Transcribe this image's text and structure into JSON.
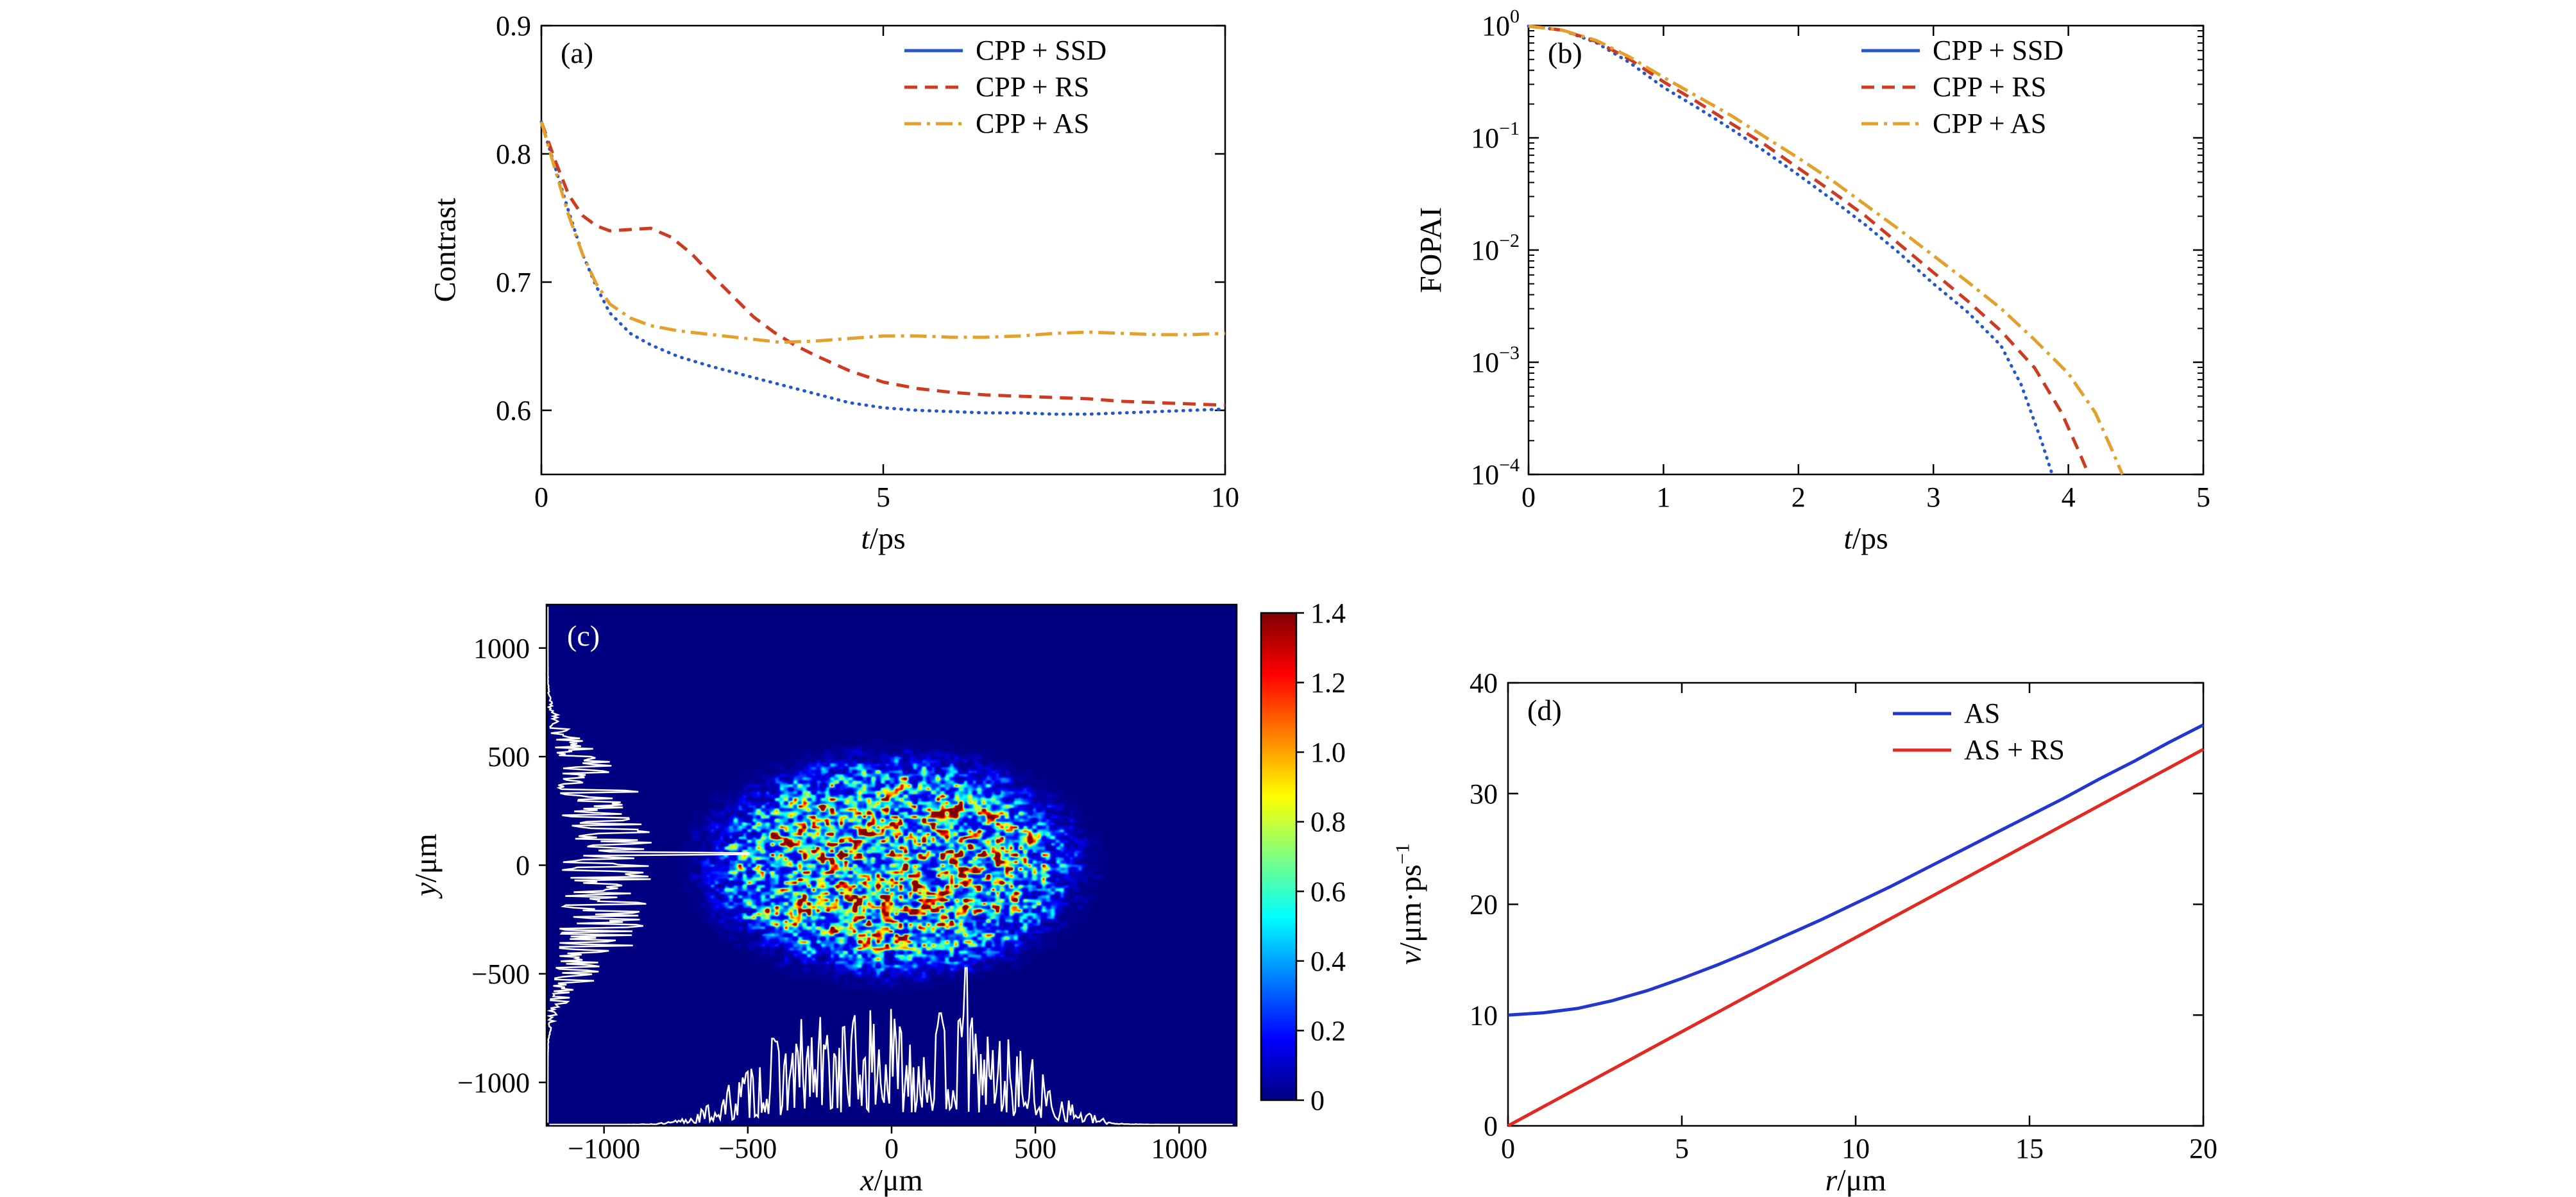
{
  "figure": {
    "background": "#ffffff"
  },
  "chart_data": [
    {
      "id": "a",
      "type": "line",
      "panel_label": "(a)",
      "xlabel": {
        "var": "t",
        "sep": "/",
        "unit": "ps"
      },
      "ylabel": "Contrast",
      "xlim": [
        0,
        10
      ],
      "ylim": [
        0.55,
        0.9
      ],
      "xticks": [
        0,
        5,
        10
      ],
      "xtick_labels": [
        "0",
        "5",
        "10"
      ],
      "yticks": [
        0.6,
        0.7,
        0.8,
        0.9
      ],
      "ytick_labels": [
        "0.6",
        "0.7",
        "0.8",
        "0.9"
      ],
      "grid": false,
      "legend": {
        "position": "upper right"
      },
      "series": [
        {
          "name": "CPP + SSD",
          "color": "#2457c9",
          "plot_dash": "dotted",
          "legend_dash": "solid",
          "x": [
            0,
            0.2,
            0.4,
            0.6,
            0.8,
            1,
            1.3,
            1.6,
            2,
            2.5,
            3,
            3.5,
            4,
            4.5,
            5,
            5.5,
            6,
            6.5,
            7,
            7.5,
            8,
            8.5,
            9,
            9.5,
            10
          ],
          "y": [
            0.825,
            0.79,
            0.755,
            0.722,
            0.697,
            0.676,
            0.66,
            0.651,
            0.642,
            0.634,
            0.627,
            0.62,
            0.613,
            0.606,
            0.602,
            0.6,
            0.599,
            0.598,
            0.598,
            0.597,
            0.597,
            0.598,
            0.599,
            0.6,
            0.601
          ]
        },
        {
          "name": "CPP + RS",
          "color": "#ce3b23",
          "plot_dash": "dashed",
          "legend_dash": "dashed",
          "x": [
            0,
            0.2,
            0.4,
            0.6,
            0.8,
            1,
            1.3,
            1.6,
            1.9,
            2.2,
            2.5,
            2.8,
            3.1,
            3.4,
            3.7,
            4,
            4.5,
            5,
            5.5,
            6,
            6.5,
            7,
            7.5,
            8,
            8.5,
            9,
            9.5,
            10
          ],
          "y": [
            0.825,
            0.795,
            0.768,
            0.752,
            0.744,
            0.74,
            0.741,
            0.742,
            0.735,
            0.722,
            0.705,
            0.689,
            0.673,
            0.661,
            0.651,
            0.643,
            0.631,
            0.622,
            0.617,
            0.614,
            0.612,
            0.611,
            0.61,
            0.609,
            0.607,
            0.606,
            0.605,
            0.604
          ]
        },
        {
          "name": "CPP + AS",
          "color": "#e3a12c",
          "plot_dash": "dashdot",
          "legend_dash": "dashdot",
          "x": [
            0,
            0.2,
            0.4,
            0.6,
            0.8,
            1,
            1.3,
            1.6,
            2,
            2.5,
            3,
            3.5,
            4,
            4.5,
            5,
            5.5,
            6,
            6.5,
            7,
            7.5,
            8,
            8.5,
            9,
            9.5,
            10
          ],
          "y": [
            0.825,
            0.788,
            0.752,
            0.722,
            0.699,
            0.683,
            0.672,
            0.666,
            0.662,
            0.659,
            0.656,
            0.653,
            0.654,
            0.656,
            0.658,
            0.658,
            0.657,
            0.657,
            0.658,
            0.66,
            0.661,
            0.66,
            0.659,
            0.659,
            0.66
          ]
        }
      ]
    },
    {
      "id": "b",
      "type": "line",
      "panel_label": "(b)",
      "xlabel": {
        "var": "t",
        "sep": "/",
        "unit": "ps"
      },
      "ylabel": "FOPAI",
      "xlim": [
        0,
        5
      ],
      "yscale": "log",
      "ylim_exp": [
        0,
        -4
      ],
      "xticks": [
        0,
        1,
        2,
        3,
        4,
        5
      ],
      "xtick_labels": [
        "0",
        "1",
        "2",
        "3",
        "4",
        "5"
      ],
      "ytick_exps": [
        0,
        -1,
        -2,
        -3,
        -4
      ],
      "ytick_exponent_labels": [
        "0",
        "−1",
        "−2",
        "−3",
        "−4"
      ],
      "grid": false,
      "legend": {
        "position": "upper right"
      },
      "series": [
        {
          "name": "CPP + SSD",
          "color": "#2457c9",
          "plot_dash": "dotted",
          "legend_dash": "solid",
          "x": [
            0,
            0.25,
            0.5,
            0.75,
            1,
            1.25,
            1.5,
            1.75,
            2,
            2.25,
            2.5,
            2.75,
            3,
            3.25,
            3.5,
            3.65,
            3.8,
            3.88
          ],
          "y_log10": [
            -0.005,
            -0.04,
            -0.15,
            -0.33,
            -0.55,
            -0.73,
            -0.92,
            -1.12,
            -1.33,
            -1.55,
            -1.78,
            -2.03,
            -2.3,
            -2.55,
            -2.85,
            -3.2,
            -3.7,
            -4
          ]
        },
        {
          "name": "CPP + RS",
          "color": "#ce3b23",
          "plot_dash": "dashed",
          "legend_dash": "dashed",
          "x": [
            0,
            0.25,
            0.5,
            0.75,
            1,
            1.25,
            1.5,
            1.75,
            2,
            2.25,
            2.5,
            2.75,
            3,
            3.25,
            3.5,
            3.75,
            3.95,
            4.08,
            4.15
          ],
          "y_log10": [
            -0.005,
            -0.04,
            -0.14,
            -0.3,
            -0.5,
            -0.68,
            -0.87,
            -1.06,
            -1.27,
            -1.48,
            -1.7,
            -1.95,
            -2.2,
            -2.45,
            -2.72,
            -3.05,
            -3.45,
            -3.8,
            -4
          ]
        },
        {
          "name": "CPP + AS",
          "color": "#e3a12c",
          "plot_dash": "dashdot",
          "legend_dash": "dashdot",
          "x": [
            0,
            0.25,
            0.5,
            0.75,
            1,
            1.25,
            1.5,
            1.75,
            2,
            2.25,
            2.5,
            2.75,
            3,
            3.25,
            3.5,
            3.75,
            4,
            4.2,
            4.33,
            4.4
          ],
          "y_log10": [
            -0.005,
            -0.04,
            -0.13,
            -0.28,
            -0.46,
            -0.63,
            -0.8,
            -0.99,
            -1.18,
            -1.38,
            -1.6,
            -1.82,
            -2.05,
            -2.28,
            -2.52,
            -2.8,
            -3.1,
            -3.45,
            -3.8,
            -4
          ]
        }
      ]
    },
    {
      "id": "c",
      "type": "heatmap",
      "panel_label": "(c)",
      "xlabel": {
        "var": "x",
        "sep": "/",
        "unit": "μm"
      },
      "ylabel": {
        "var": "y",
        "sep": "/",
        "unit": "μm"
      },
      "xlim": [
        -1200,
        1200
      ],
      "ylim": [
        -1200,
        1200
      ],
      "xticks": [
        -1000,
        -500,
        0,
        500,
        1000
      ],
      "xtick_labels": [
        "−1000",
        "−500",
        "0",
        "500",
        "1000"
      ],
      "yticks": [
        -1000,
        -500,
        0,
        500,
        1000
      ],
      "ytick_labels": [
        "−1000",
        "−500",
        "0",
        "500",
        "1000"
      ],
      "colorbar": {
        "min": 0,
        "max": 1.4,
        "tick_values": [
          0,
          0.2,
          0.4,
          0.6,
          0.8,
          1,
          1.2,
          1.4
        ],
        "tick_labels": [
          "0",
          "0.2",
          "0.4",
          "0.6",
          "0.8",
          "1.0",
          "1.2",
          "1.4"
        ],
        "colormap": "jet"
      },
      "spot": {
        "center_um": [
          0,
          0
        ],
        "semi_axis_x_um": 590,
        "semi_axis_y_um": 460,
        "peak_intensity": 1.4
      },
      "profiles": {
        "color": "#ffffff"
      }
    },
    {
      "id": "d",
      "type": "line",
      "panel_label": "(d)",
      "xlabel": {
        "var": "r",
        "sep": "/",
        "unit": "μm"
      },
      "ylabel": {
        "var": "v",
        "sep": "/",
        "unit": "μm·ps",
        "sup": "−1"
      },
      "xlim": [
        0,
        20
      ],
      "ylim": [
        0,
        40
      ],
      "xticks": [
        0,
        5,
        10,
        15,
        20
      ],
      "xtick_labels": [
        "0",
        "5",
        "10",
        "15",
        "20"
      ],
      "yticks": [
        0,
        10,
        20,
        30,
        40
      ],
      "ytick_labels": [
        "0",
        "10",
        "20",
        "30",
        "40"
      ],
      "grid": false,
      "legend": {
        "position": "upper center-right"
      },
      "series": [
        {
          "name": "AS",
          "color": "#2336d0",
          "plot_dash": "solid",
          "legend_dash": "solid",
          "x": [
            0,
            1,
            2,
            3,
            4,
            5,
            6,
            7,
            8,
            9,
            10,
            11,
            12,
            13,
            14,
            15,
            16,
            17,
            18,
            19,
            20
          ],
          "y": [
            10,
            10.2,
            10.6,
            11.3,
            12.2,
            13.3,
            14.5,
            15.8,
            17.2,
            18.6,
            20.1,
            21.6,
            23.2,
            24.8,
            26.4,
            28,
            29.6,
            31.3,
            32.9,
            34.6,
            36.2
          ]
        },
        {
          "name": "AS + RS",
          "color": "#e12a22",
          "plot_dash": "solid",
          "legend_dash": "solid",
          "x": [
            0,
            2,
            4,
            6,
            8,
            10,
            12,
            14,
            16,
            18,
            20
          ],
          "y": [
            0,
            3.4,
            6.8,
            10.2,
            13.6,
            17,
            20.4,
            23.8,
            27.2,
            30.6,
            34
          ]
        }
      ]
    }
  ]
}
